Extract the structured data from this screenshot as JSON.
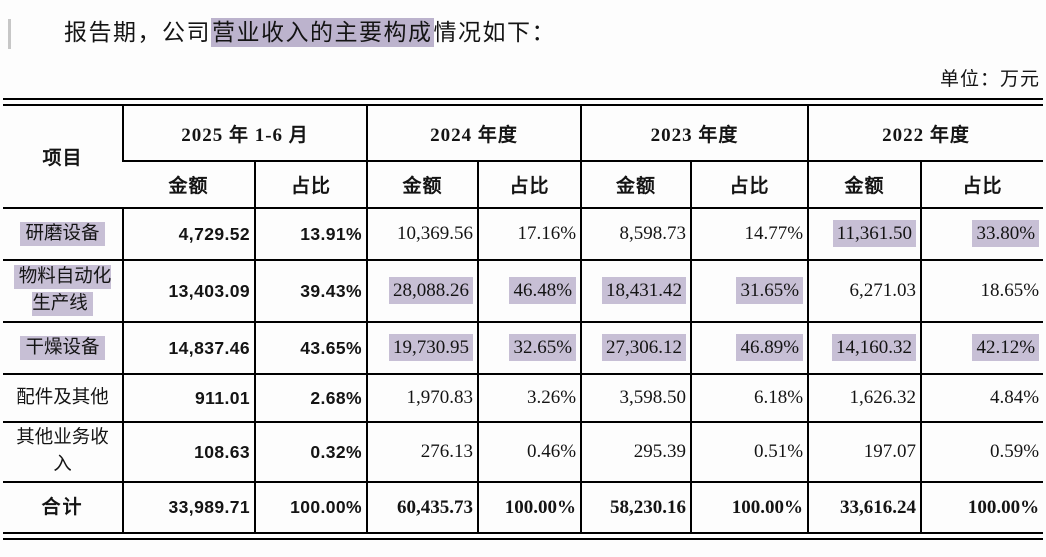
{
  "page": {
    "title_prefix": "报告期，公司",
    "title_highlight": "营业收入的主要构成",
    "title_suffix": "情况如下：",
    "unit_label": "单位：万元"
  },
  "colors": {
    "highlight": "#c7bfd5",
    "border": "#000000"
  },
  "table": {
    "item_header": "项目",
    "sub_headers": [
      "金额",
      "占比"
    ],
    "col_groups": [
      {
        "label": "2025 年 1-6 月"
      },
      {
        "label": "2024 年度"
      },
      {
        "label": "2023 年度"
      },
      {
        "label": "2022 年度"
      }
    ],
    "rows": [
      {
        "label": "研磨设备",
        "label_hl": true,
        "total": false,
        "cells": [
          {
            "v": "4,729.52",
            "hl": false
          },
          {
            "v": "13.91%",
            "hl": false
          },
          {
            "v": "10,369.56",
            "hl": false
          },
          {
            "v": "17.16%",
            "hl": false
          },
          {
            "v": "8,598.73",
            "hl": false
          },
          {
            "v": "14.77%",
            "hl": false
          },
          {
            "v": "11,361.50",
            "hl": true
          },
          {
            "v": "33.80%",
            "hl": true
          }
        ]
      },
      {
        "label": "物料自动化生产线",
        "label_hl": true,
        "total": false,
        "cells": [
          {
            "v": "13,403.09",
            "hl": false
          },
          {
            "v": "39.43%",
            "hl": false
          },
          {
            "v": "28,088.26",
            "hl": true
          },
          {
            "v": "46.48%",
            "hl": true
          },
          {
            "v": "18,431.42",
            "hl": true
          },
          {
            "v": "31.65%",
            "hl": true
          },
          {
            "v": "6,271.03",
            "hl": false
          },
          {
            "v": "18.65%",
            "hl": false
          }
        ]
      },
      {
        "label": "干燥设备",
        "label_hl": true,
        "total": false,
        "cells": [
          {
            "v": "14,837.46",
            "hl": false
          },
          {
            "v": "43.65%",
            "hl": false
          },
          {
            "v": "19,730.95",
            "hl": true
          },
          {
            "v": "32.65%",
            "hl": true
          },
          {
            "v": "27,306.12",
            "hl": true
          },
          {
            "v": "46.89%",
            "hl": true
          },
          {
            "v": "14,160.32",
            "hl": true
          },
          {
            "v": "42.12%",
            "hl": true
          }
        ]
      },
      {
        "label": "配件及其他",
        "label_hl": false,
        "total": false,
        "cells": [
          {
            "v": "911.01",
            "hl": false
          },
          {
            "v": "2.68%",
            "hl": false
          },
          {
            "v": "1,970.83",
            "hl": false
          },
          {
            "v": "3.26%",
            "hl": false
          },
          {
            "v": "3,598.50",
            "hl": false
          },
          {
            "v": "6.18%",
            "hl": false
          },
          {
            "v": "1,626.32",
            "hl": false
          },
          {
            "v": "4.84%",
            "hl": false
          }
        ]
      },
      {
        "label": "其他业务收入",
        "label_hl": false,
        "total": false,
        "cells": [
          {
            "v": "108.63",
            "hl": false
          },
          {
            "v": "0.32%",
            "hl": false
          },
          {
            "v": "276.13",
            "hl": false
          },
          {
            "v": "0.46%",
            "hl": false
          },
          {
            "v": "295.39",
            "hl": false
          },
          {
            "v": "0.51%",
            "hl": false
          },
          {
            "v": "197.07",
            "hl": false
          },
          {
            "v": "0.59%",
            "hl": false
          }
        ]
      },
      {
        "label": "合计",
        "label_hl": false,
        "total": true,
        "cells": [
          {
            "v": "33,989.71",
            "hl": false
          },
          {
            "v": "100.00%",
            "hl": false
          },
          {
            "v": "60,435.73",
            "hl": false
          },
          {
            "v": "100.00%",
            "hl": false
          },
          {
            "v": "58,230.16",
            "hl": false
          },
          {
            "v": "100.00%",
            "hl": false
          },
          {
            "v": "33,616.24",
            "hl": false
          },
          {
            "v": "100.00%",
            "hl": false
          }
        ]
      }
    ]
  }
}
